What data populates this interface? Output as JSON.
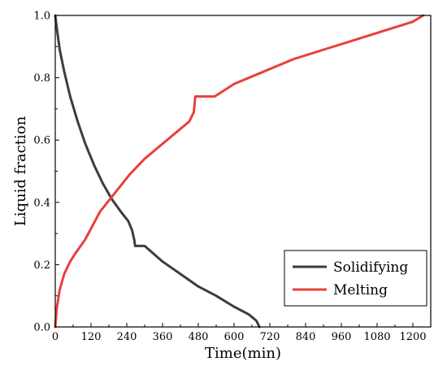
{
  "chart_data": {
    "type": "line",
    "title": "",
    "xlabel": "Time(min)",
    "ylabel": "Liquid fraction",
    "xlim": [
      0,
      1260
    ],
    "ylim": [
      0,
      1.0
    ],
    "xticks": [
      0,
      120,
      240,
      360,
      480,
      600,
      720,
      840,
      960,
      1080,
      1200
    ],
    "yticks": [
      0.0,
      0.2,
      0.4,
      0.6,
      0.8,
      1.0
    ],
    "xtick_labels": [
      "0",
      "120",
      "240",
      "360",
      "480",
      "600",
      "720",
      "840",
      "960",
      "1080",
      "1200"
    ],
    "ytick_labels": [
      "0.0",
      "0.2",
      "0.4",
      "0.6",
      "0.8",
      "1.0"
    ],
    "grid": false,
    "legend_position": "bottom-right",
    "series": [
      {
        "name": "Solidifying",
        "color": "#3d3d3d",
        "x": [
          0,
          5,
          15,
          30,
          50,
          75,
          100,
          130,
          160,
          190,
          220,
          245,
          258,
          265,
          268,
          270,
          300,
          360,
          420,
          480,
          540,
          600,
          650,
          675,
          685
        ],
        "y": [
          1.0,
          0.96,
          0.89,
          0.82,
          0.74,
          0.66,
          0.59,
          0.52,
          0.46,
          0.41,
          0.37,
          0.34,
          0.31,
          0.28,
          0.26,
          0.26,
          0.26,
          0.21,
          0.17,
          0.13,
          0.1,
          0.065,
          0.04,
          0.02,
          0.0
        ]
      },
      {
        "name": "Melting",
        "color": "#e8403c",
        "x": [
          0,
          5,
          15,
          30,
          50,
          70,
          100,
          150,
          200,
          250,
          300,
          350,
          400,
          450,
          465,
          470,
          480,
          500,
          520,
          535,
          600,
          700,
          800,
          900,
          1000,
          1100,
          1200,
          1235
        ],
        "y": [
          0.0,
          0.06,
          0.12,
          0.17,
          0.21,
          0.24,
          0.28,
          0.37,
          0.43,
          0.49,
          0.54,
          0.58,
          0.62,
          0.66,
          0.69,
          0.74,
          0.74,
          0.74,
          0.74,
          0.74,
          0.78,
          0.82,
          0.86,
          0.89,
          0.92,
          0.95,
          0.98,
          1.0
        ]
      }
    ]
  }
}
